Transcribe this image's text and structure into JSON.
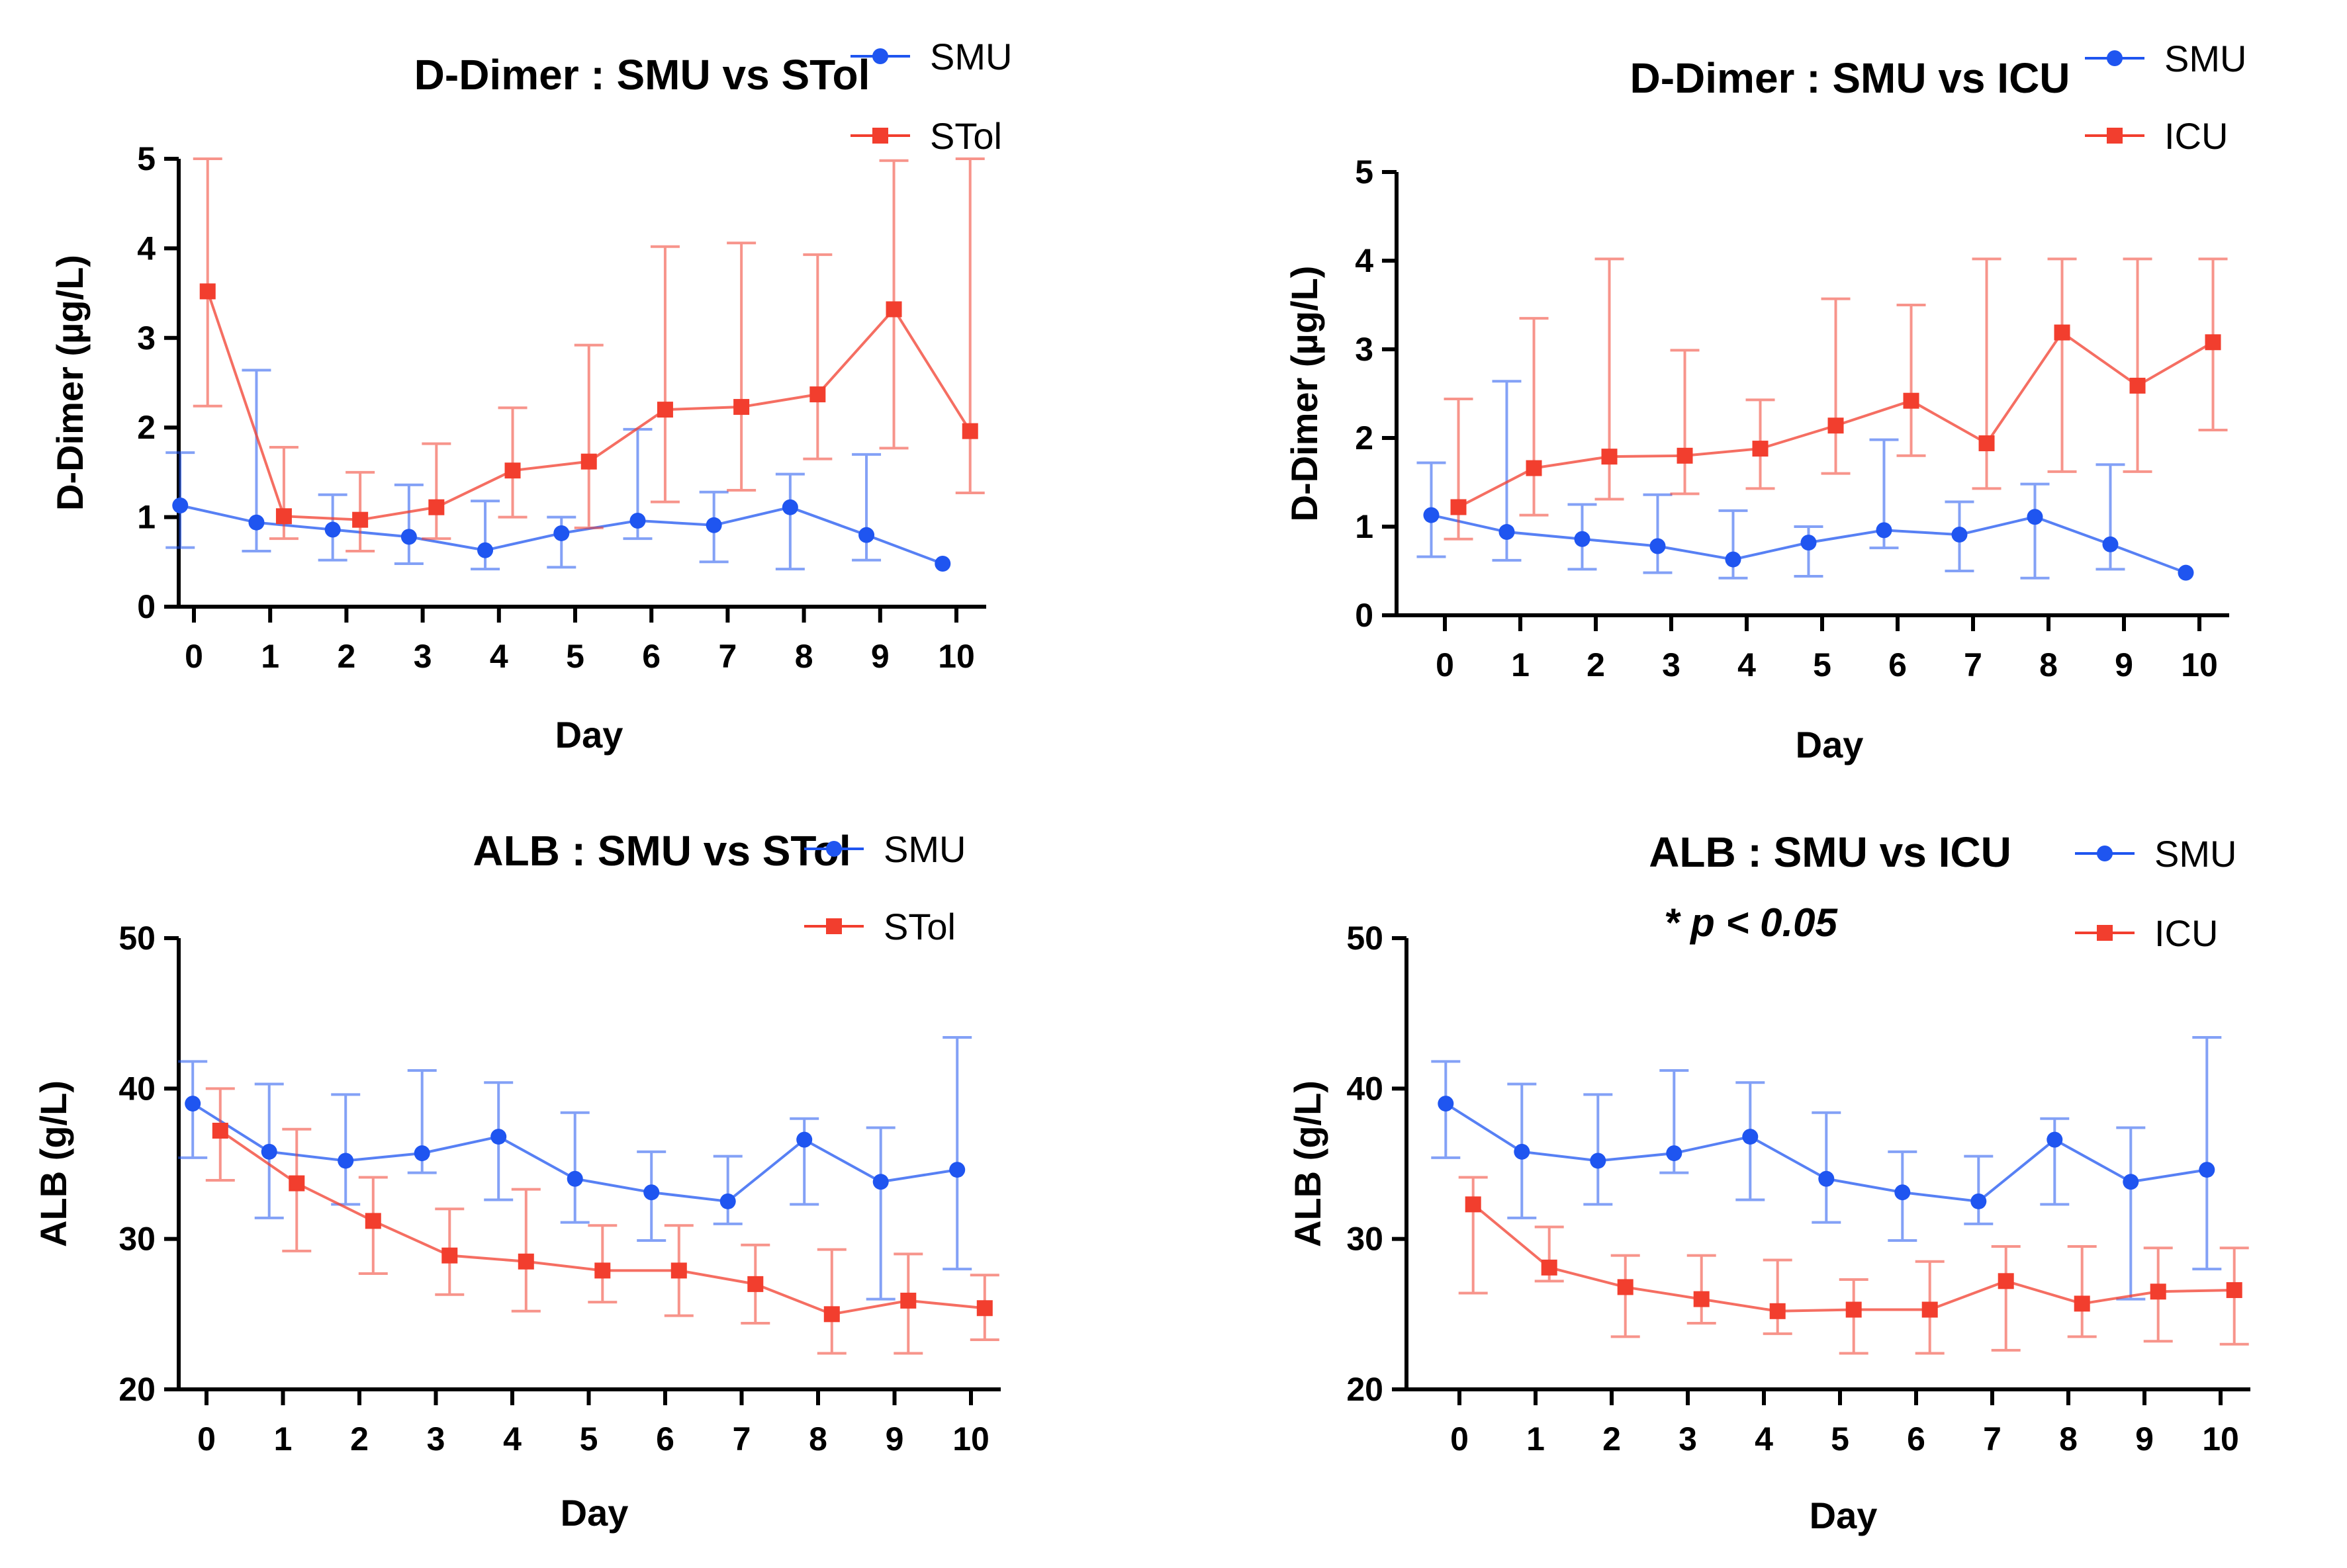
{
  "colors": {
    "smu": "#1f55f0",
    "red": "#f23e2e",
    "axis": "#000000"
  },
  "chart_data": [
    {
      "id": "dd-stol",
      "type": "line",
      "title": "D-Dimer : SMU vs STol",
      "xlabel": "Day",
      "ylabel": "D-Dimer (µg/L)",
      "x": [
        0,
        1,
        2,
        3,
        4,
        5,
        6,
        7,
        8,
        9,
        10
      ],
      "x_tick_labels": [
        "0",
        "1",
        "2",
        "3",
        "4",
        "5",
        "6",
        "7",
        "8",
        "9",
        "10"
      ],
      "ylim": [
        0,
        5
      ],
      "y_ticks": [
        0,
        1,
        2,
        3,
        4,
        5
      ],
      "y_tick_labels": [
        "0",
        "1",
        "2",
        "3",
        "4",
        "5"
      ],
      "series": [
        {
          "name": "SMU",
          "marker": "circle",
          "color": "#1f55f0",
          "offset": -0.18,
          "values": [
            1.13,
            0.94,
            0.86,
            0.78,
            0.63,
            0.82,
            0.96,
            0.91,
            1.11,
            0.8,
            0.48
          ],
          "err_upper": [
            1.72,
            2.64,
            1.25,
            1.36,
            1.18,
            1.0,
            1.98,
            1.28,
            1.48,
            1.7,
            null
          ],
          "err_lower": [
            0.66,
            0.62,
            0.52,
            0.48,
            0.42,
            0.44,
            0.76,
            0.5,
            0.42,
            0.52,
            null
          ]
        },
        {
          "name": "STol",
          "marker": "square",
          "color": "#f23e2e",
          "offset": 0.18,
          "values": [
            3.52,
            1.01,
            0.97,
            1.11,
            1.52,
            1.62,
            2.2,
            2.23,
            2.37,
            3.32,
            1.96
          ],
          "err_upper": [
            5.0,
            1.78,
            1.5,
            1.82,
            2.22,
            2.92,
            4.02,
            4.06,
            3.93,
            4.98,
            5.0
          ],
          "err_lower": [
            2.24,
            0.76,
            0.62,
            0.76,
            1.0,
            0.88,
            1.17,
            1.3,
            1.65,
            1.77,
            1.27
          ]
        }
      ]
    },
    {
      "id": "dd-icu",
      "type": "line",
      "title": "D-Dimer : SMU vs ICU",
      "xlabel": "Day",
      "ylabel": "D-Dimer (µg/L)",
      "x": [
        0,
        1,
        2,
        3,
        4,
        5,
        6,
        7,
        8,
        9,
        10
      ],
      "x_tick_labels": [
        "0",
        "1",
        "2",
        "3",
        "4",
        "5",
        "6",
        "7",
        "8",
        "9",
        "10"
      ],
      "ylim": [
        0,
        5
      ],
      "y_ticks": [
        0,
        1,
        2,
        3,
        4,
        5
      ],
      "y_tick_labels": [
        "0",
        "1",
        "2",
        "3",
        "4",
        "5"
      ],
      "series": [
        {
          "name": "SMU",
          "marker": "circle",
          "color": "#1f55f0",
          "offset": -0.18,
          "values": [
            1.13,
            0.94,
            0.86,
            0.78,
            0.63,
            0.82,
            0.96,
            0.91,
            1.11,
            0.8,
            0.48
          ],
          "err_upper": [
            1.72,
            2.64,
            1.25,
            1.36,
            1.18,
            1.0,
            1.98,
            1.28,
            1.48,
            1.7,
            null
          ],
          "err_lower": [
            0.66,
            0.62,
            0.52,
            0.48,
            0.42,
            0.44,
            0.76,
            0.5,
            0.42,
            0.52,
            null
          ]
        },
        {
          "name": "ICU",
          "marker": "square",
          "color": "#f23e2e",
          "offset": 0.18,
          "values": [
            1.22,
            1.66,
            1.79,
            1.8,
            1.88,
            2.14,
            2.42,
            1.94,
            3.19,
            2.59,
            3.08
          ],
          "err_upper": [
            2.44,
            3.35,
            4.02,
            2.99,
            2.43,
            3.57,
            3.5,
            4.02,
            4.02,
            4.02,
            4.02
          ],
          "err_lower": [
            0.86,
            1.13,
            1.31,
            1.37,
            1.43,
            1.6,
            1.8,
            1.43,
            1.62,
            1.62,
            2.09
          ]
        }
      ]
    },
    {
      "id": "alb-stol",
      "type": "line",
      "title": "ALB : SMU  vs STol",
      "xlabel": "Day",
      "ylabel": "ALB (g/L)",
      "x": [
        0,
        1,
        2,
        3,
        4,
        5,
        6,
        7,
        8,
        9,
        10
      ],
      "x_tick_labels": [
        "0",
        "1",
        "2",
        "3",
        "4",
        "5",
        "6",
        "7",
        "8",
        "9",
        "10"
      ],
      "ylim": [
        20,
        50
      ],
      "y_ticks": [
        20,
        30,
        40,
        50
      ],
      "y_tick_labels": [
        "20",
        "30",
        "40",
        "50"
      ],
      "series": [
        {
          "name": "SMU",
          "marker": "circle",
          "color": "#1f55f0",
          "offset": -0.18,
          "values": [
            39.0,
            35.8,
            35.2,
            35.7,
            36.8,
            34.0,
            33.1,
            32.5,
            36.6,
            33.8,
            34.6
          ],
          "err_upper": [
            41.8,
            40.3,
            39.6,
            41.2,
            40.4,
            38.4,
            35.8,
            35.5,
            38.0,
            37.4,
            43.4
          ],
          "err_lower": [
            35.4,
            31.4,
            32.3,
            34.4,
            32.6,
            31.1,
            29.9,
            31.0,
            32.3,
            26.0,
            28.0
          ]
        },
        {
          "name": "STol",
          "marker": "square",
          "color": "#f23e2e",
          "offset": 0.18,
          "values": [
            37.2,
            33.7,
            31.2,
            28.9,
            28.5,
            27.9,
            27.9,
            27.0,
            25.0,
            25.9,
            25.4
          ],
          "err_upper": [
            40.0,
            37.3,
            34.1,
            32.0,
            33.3,
            30.9,
            30.9,
            29.6,
            29.3,
            29.0,
            27.6
          ],
          "err_lower": [
            33.9,
            29.2,
            27.7,
            26.3,
            25.2,
            25.8,
            24.9,
            24.4,
            22.4,
            22.4,
            23.3
          ]
        }
      ]
    },
    {
      "id": "alb-icu",
      "type": "line",
      "title": "ALB : SMU vs ICU",
      "annotation": "* p < 0.05",
      "xlabel": "Day",
      "ylabel": "ALB (g/L)",
      "x": [
        0,
        1,
        2,
        3,
        4,
        5,
        6,
        7,
        8,
        9,
        10
      ],
      "x_tick_labels": [
        "0",
        "1",
        "2",
        "3",
        "4",
        "5",
        "6",
        "7",
        "8",
        "9",
        "10"
      ],
      "ylim": [
        20,
        50
      ],
      "y_ticks": [
        20,
        30,
        40,
        50
      ],
      "y_tick_labels": [
        "20",
        "30",
        "40",
        "50"
      ],
      "series": [
        {
          "name": "SMU",
          "marker": "circle",
          "color": "#1f55f0",
          "offset": -0.18,
          "values": [
            39.0,
            35.8,
            35.2,
            35.7,
            36.8,
            34.0,
            33.1,
            32.5,
            36.6,
            33.8,
            34.6
          ],
          "err_upper": [
            41.8,
            40.3,
            39.6,
            41.2,
            40.4,
            38.4,
            35.8,
            35.5,
            38.0,
            37.4,
            43.4
          ],
          "err_lower": [
            35.4,
            31.4,
            32.3,
            34.4,
            32.6,
            31.1,
            29.9,
            31.0,
            32.3,
            26.0,
            28.0
          ]
        },
        {
          "name": "ICU",
          "marker": "square",
          "color": "#f23e2e",
          "offset": 0.18,
          "values": [
            32.3,
            28.1,
            26.8,
            26.0,
            25.2,
            25.3,
            25.3,
            27.2,
            25.7,
            26.5,
            26.6
          ],
          "err_upper": [
            34.1,
            30.8,
            28.9,
            28.9,
            28.6,
            27.3,
            28.5,
            29.5,
            29.5,
            29.4,
            29.4
          ],
          "err_lower": [
            26.4,
            27.2,
            23.5,
            24.4,
            23.7,
            22.4,
            22.4,
            22.6,
            23.5,
            23.2,
            23.0
          ]
        }
      ]
    }
  ]
}
